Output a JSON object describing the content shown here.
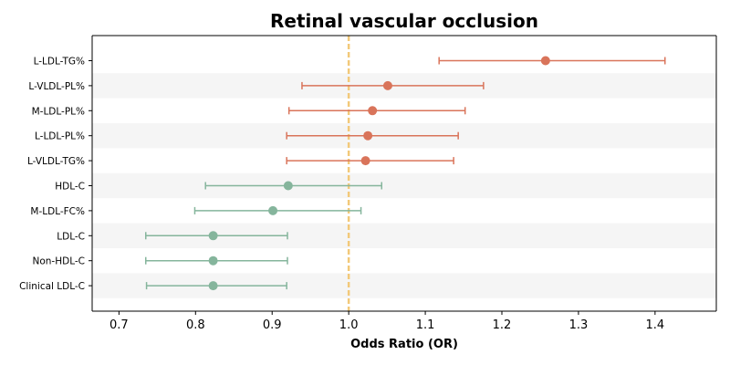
{
  "chart_data": {
    "type": "forest",
    "title": "Retinal vascular occlusion",
    "xlabel": "Odds Ratio (OR)",
    "ylabel": "",
    "xlim": [
      0.665,
      1.48
    ],
    "xticks": [
      0.7,
      0.8,
      0.9,
      1.0,
      1.1,
      1.2,
      1.3,
      1.4
    ],
    "xtick_labels": [
      "0.7",
      "0.8",
      "0.9",
      "1.0",
      "1.1",
      "1.2",
      "1.3",
      "1.4"
    ],
    "reference_line": 1.0,
    "grid": false,
    "alternating_row_shading": true,
    "colors": {
      "risk": "#d9745a",
      "protective": "#85b59c",
      "reference_line": "#f2c97a",
      "row_shade": "#f5f5f5"
    },
    "rows": [
      {
        "label": "L-LDL-TG%",
        "or": 1.257,
        "lower": 1.118,
        "upper": 1.413,
        "group": "risk"
      },
      {
        "label": "L-VLDL-PL%",
        "or": 1.051,
        "lower": 0.939,
        "upper": 1.176,
        "group": "risk"
      },
      {
        "label": "M-LDL-PL%",
        "or": 1.031,
        "lower": 0.922,
        "upper": 1.152,
        "group": "risk"
      },
      {
        "label": "L-LDL-PL%",
        "or": 1.025,
        "lower": 0.919,
        "upper": 1.143,
        "group": "risk"
      },
      {
        "label": "L-VLDL-TG%",
        "or": 1.022,
        "lower": 0.919,
        "upper": 1.137,
        "group": "risk"
      },
      {
        "label": "HDL-C",
        "or": 0.921,
        "lower": 0.813,
        "upper": 1.043,
        "group": "protective"
      },
      {
        "label": "M-LDL-FC%",
        "or": 0.901,
        "lower": 0.799,
        "upper": 1.016,
        "group": "protective"
      },
      {
        "label": "LDL-C",
        "or": 0.823,
        "lower": 0.735,
        "upper": 0.92,
        "group": "protective"
      },
      {
        "label": "Non-HDL-C",
        "or": 0.823,
        "lower": 0.735,
        "upper": 0.92,
        "group": "protective"
      },
      {
        "label": "Clinical LDL-C",
        "or": 0.823,
        "lower": 0.736,
        "upper": 0.919,
        "group": "protective"
      }
    ]
  }
}
